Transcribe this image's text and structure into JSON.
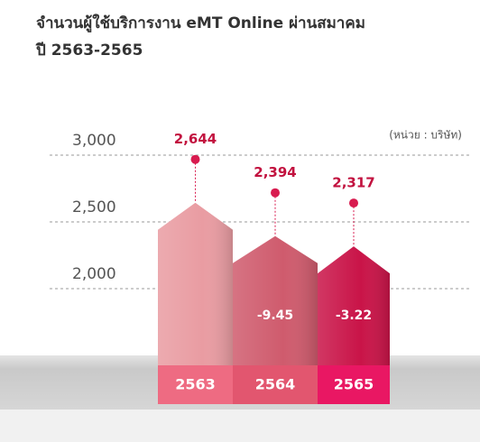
{
  "chart_data": {
    "type": "bar",
    "title": "จำนวนผู้ใช้บริการงาน eMT Online ผ่านสมาคม",
    "subtitle": "ปี 2563-2565",
    "unit_label": "(หน่วย : บริษัท)",
    "categories": [
      "2563",
      "2564",
      "2565"
    ],
    "values": [
      2644,
      2394,
      2317
    ],
    "value_labels": [
      "2,644",
      "2,394",
      "2,317"
    ],
    "changes": [
      null,
      -9.45,
      -3.22
    ],
    "colors": [
      "#e99ca2",
      "#cf5b6d",
      "#c91448"
    ],
    "category_colors": [
      "#ee6b82",
      "#e2566f",
      "#e91763"
    ],
    "ylim": [
      1500,
      3000
    ],
    "yticks": [
      {
        "value": 2000,
        "label": "2,000"
      },
      {
        "value": 2500,
        "label": "2,500"
      },
      {
        "value": 3000,
        "label": "3,000"
      }
    ],
    "grid": true
  }
}
